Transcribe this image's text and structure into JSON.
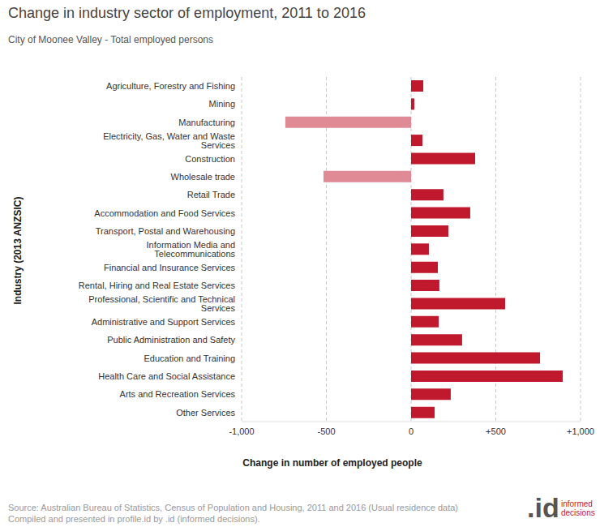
{
  "chart_data": {
    "type": "bar",
    "title": "Change in industry sector of employment, 2011 to 2016",
    "subtitle": "City of Moonee Valley - Total employed persons",
    "x_label": "Change in number of employed people",
    "y_label": "Industry (2013 ANZSIC)",
    "orientation": "horizontal",
    "grid": true,
    "categories": [
      "Agriculture, Forestry and Fishing",
      "Mining",
      "Manufacturing",
      "Electricity, Gas, Water and Waste Services",
      "Construction",
      "Wholesale trade",
      "Retail Trade",
      "Accommodation and Food Services",
      "Transport, Postal and Warehousing",
      "Information Media and Telecommunications",
      "Financial and Insurance Services",
      "Rental, Hiring and Real Estate Services",
      "Professional, Scientific and Technical Services",
      "Administrative and Support Services",
      "Public Administration and Safety",
      "Education and Training",
      "Health Care and Social Assistance",
      "Arts and Recreation Services",
      "Other Services"
    ],
    "values": [
      72,
      19,
      -742,
      67,
      378,
      -517,
      191,
      349,
      220,
      105,
      158,
      167,
      555,
      163,
      301,
      761,
      895,
      234,
      139
    ],
    "colors": [
      "#c0182c",
      "#c0182c",
      "#e08a96",
      "#c0182c",
      "#c0182c",
      "#e08a96",
      "#c0182c",
      "#c0182c",
      "#c0182c",
      "#c0182c",
      "#c0182c",
      "#c0182c",
      "#c0182c",
      "#c0182c",
      "#c0182c",
      "#c0182c",
      "#c0182c",
      "#c0182c",
      "#c0182c"
    ],
    "xlim": [
      -1000,
      1000
    ],
    "xticks": [
      {
        "value": -1000,
        "label": "-1,000"
      },
      {
        "value": -500,
        "label": "-500"
      },
      0,
      {
        "value": 500,
        "label": "+500"
      },
      {
        "value": 1000,
        "label": "+1,000"
      }
    ],
    "source": [
      "Source: Australian Bureau of Statistics, Census of Population and Housing, 2011 and 2016 (Usual residence data)",
      "Compiled and presented in profile.id by .id (informed decisions)."
    ],
    "logo": {
      "mark": ".id",
      "text": [
        "informed",
        "decisions"
      ]
    }
  }
}
